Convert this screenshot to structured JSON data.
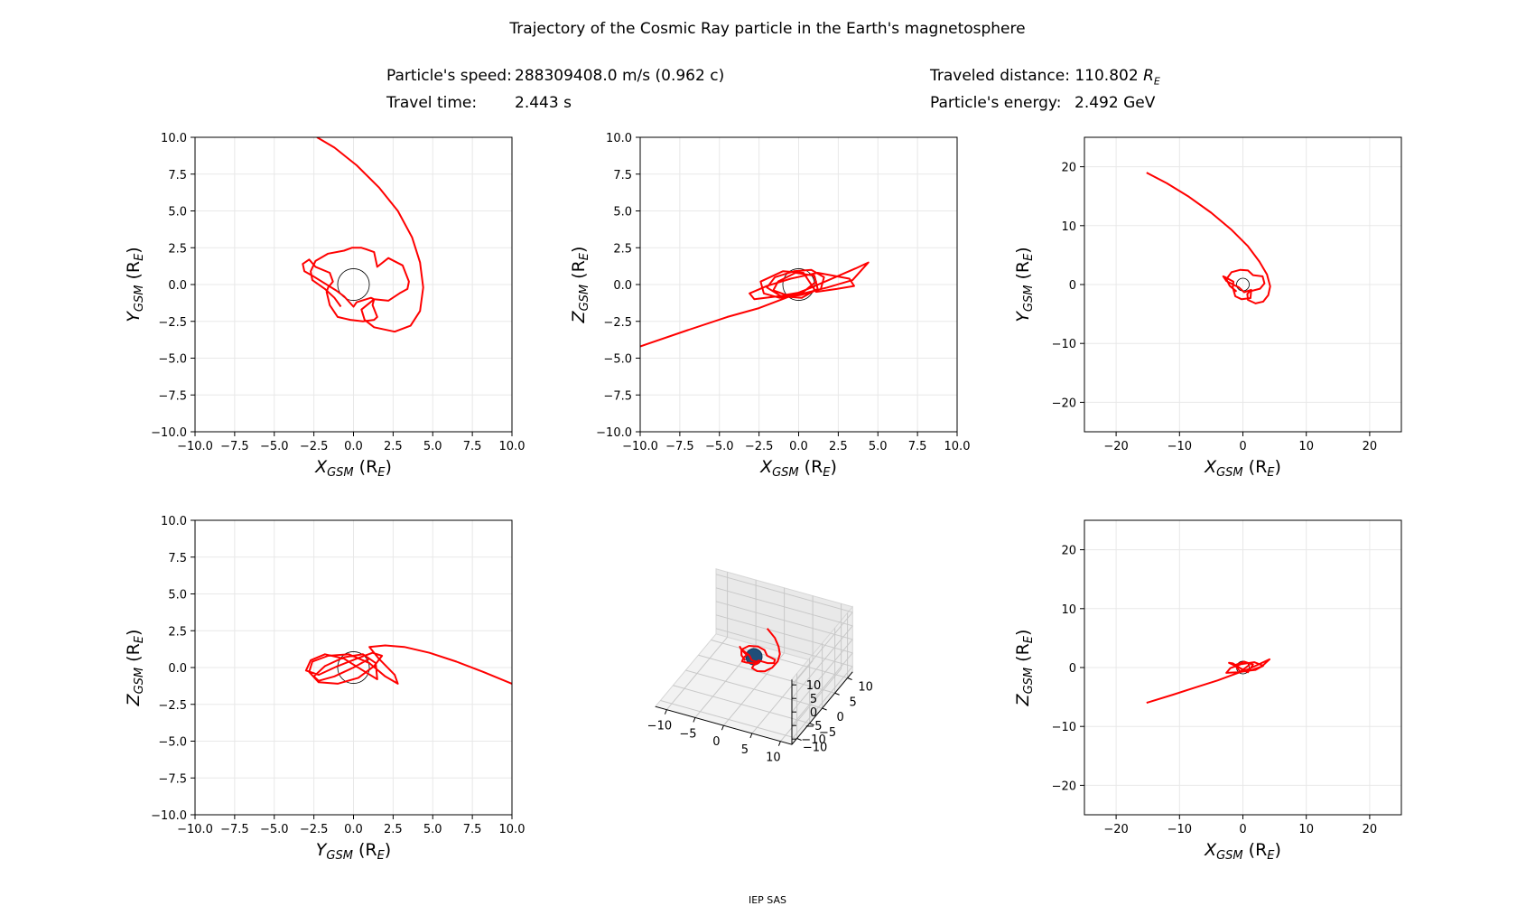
{
  "title": "Trajectory of the Cosmic Ray particle in the Earth's magnetosphere",
  "info": {
    "speed_label": "Particle's speed:",
    "speed_value": "288309408.0 m/s (0.962 c)",
    "time_label": "Travel time:",
    "time_value": "2.443 s",
    "distance_label": "Traveled distance:",
    "distance_value": "110.802",
    "distance_unit": "R",
    "distance_unit_sub": "E",
    "energy_label": "Particle's energy:",
    "energy_value": "2.492 GeV"
  },
  "footer": "IEP SAS",
  "colors": {
    "trajectory": "#ff0000",
    "earth": "#1f4e79",
    "grid": "#e8e8e8"
  },
  "chart_data": [
    {
      "type": "line",
      "panel": "XY-zoom",
      "xlabel": {
        "base": "X",
        "sub": "GSM",
        "unit": " (R",
        "unit_sub": "E",
        "close": ")"
      },
      "ylabel": {
        "base": "Y",
        "sub": "GSM",
        "unit": " (R",
        "unit_sub": "E",
        "close": ")"
      },
      "xlim": [
        -10,
        10
      ],
      "ylim": [
        -10,
        10
      ],
      "xticks": [
        "−10.0",
        "−7.5",
        "−5.0",
        "−2.5",
        "0.0",
        "2.5",
        "5.0",
        "7.5",
        "10.0"
      ],
      "yticks": [
        "−10.0",
        "−7.5",
        "−5.0",
        "−2.5",
        "0.0",
        "2.5",
        "5.0",
        "7.5",
        "10.0"
      ],
      "grid": true,
      "earth_radius": 1,
      "x": [
        -2.3,
        -1.2,
        0.2,
        1.6,
        2.8,
        3.7,
        4.2,
        4.4,
        4.2,
        3.6,
        2.6,
        1.3,
        0.7,
        0.5,
        1.3,
        1.1,
        0.2,
        0.0,
        -0.6,
        -1.1,
        -2.6,
        -3.1,
        -3.2,
        -2.8,
        -2.4,
        -1.5,
        -1.3,
        -1.6,
        -1.7,
        -1.5,
        -1.0,
        -0.2,
        0.6,
        1.3,
        1.5,
        1.2,
        1.3,
        2.2,
        2.9,
        3.4,
        3.5,
        3.1,
        2.2,
        1.5,
        1.3,
        0.8,
        0.5,
        -0.1,
        -0.6,
        -1.6,
        -2.4,
        -2.7,
        -2.6,
        -1.8,
        -1.2,
        -0.8
      ],
      "y": [
        10.0,
        9.3,
        8.1,
        6.6,
        5.0,
        3.2,
        1.5,
        -0.2,
        -1.8,
        -2.8,
        -3.2,
        -2.9,
        -2.4,
        -1.7,
        -1.0,
        -0.9,
        -1.2,
        -1.5,
        -0.8,
        -0.4,
        0.6,
        0.9,
        1.4,
        1.7,
        1.2,
        0.8,
        0.2,
        -0.2,
        -0.5,
        -1.4,
        -2.2,
        -2.4,
        -2.5,
        -2.4,
        -2.2,
        -1.4,
        -1.0,
        -1.1,
        -0.6,
        -0.3,
        0.2,
        1.3,
        1.8,
        1.2,
        2.2,
        2.4,
        2.5,
        2.5,
        2.3,
        2.1,
        1.6,
        0.9,
        0.3,
        -0.3,
        -0.9,
        -1.5
      ]
    },
    {
      "type": "line",
      "panel": "XZ-zoom",
      "xlabel": {
        "base": "X",
        "sub": "GSM",
        "unit": " (R",
        "unit_sub": "E",
        "close": ")"
      },
      "ylabel": {
        "base": "Z",
        "sub": "GSM",
        "unit": " (R",
        "unit_sub": "E",
        "close": ")"
      },
      "xlim": [
        -10,
        10
      ],
      "ylim": [
        -10,
        10
      ],
      "xticks": [
        "−10.0",
        "−7.5",
        "−5.0",
        "−2.5",
        "0.0",
        "2.5",
        "5.0",
        "7.5",
        "10.0"
      ],
      "yticks": [
        "−10.0",
        "−7.5",
        "−5.0",
        "−2.5",
        "0.0",
        "2.5",
        "5.0",
        "7.5",
        "10.0"
      ],
      "grid": true,
      "earth_radius": 1,
      "x": [
        -10.0,
        -7.0,
        -4.5,
        -2.5,
        -0.8,
        0.8,
        2.3,
        3.6,
        4.4,
        3.4,
        1.8,
        0.3,
        -1.3,
        -2.8,
        -3.1,
        -2.0,
        -0.5,
        1.2,
        3.2,
        3.5,
        2.4,
        1.1,
        0.3,
        -1.0,
        -2.4,
        -2.2,
        -1.2,
        0.2,
        1.4,
        1.6,
        0.8,
        -0.3,
        -1.5,
        -2.0,
        -1.1,
        0.2,
        1.2,
        1.0,
        -0.2,
        -1.3,
        -1.6,
        -0.8,
        0.3,
        1.1,
        0.9
      ],
      "y": [
        -4.2,
        -3.1,
        -2.2,
        -1.6,
        -0.9,
        -0.2,
        0.5,
        1.1,
        1.5,
        0.3,
        -0.2,
        -0.6,
        -0.8,
        -1.0,
        -0.6,
        -0.1,
        0.4,
        0.8,
        0.4,
        -0.1,
        -0.3,
        -0.5,
        0.8,
        0.9,
        0.2,
        -0.6,
        -0.9,
        -0.7,
        -0.3,
        0.5,
        1.0,
        0.9,
        0.5,
        -0.2,
        -0.8,
        -0.9,
        -0.3,
        0.6,
        0.8,
        0.2,
        -0.4,
        -0.7,
        -0.5,
        0.2,
        0.7
      ]
    },
    {
      "type": "line",
      "panel": "XY-wide",
      "xlabel": {
        "base": "X",
        "sub": "GSM",
        "unit": " (R",
        "unit_sub": "E",
        "close": ")"
      },
      "ylabel": {
        "base": "Y",
        "sub": "GSM",
        "unit": " (R",
        "unit_sub": "E",
        "close": ")"
      },
      "xlim": [
        -25,
        25
      ],
      "ylim": [
        -25,
        25
      ],
      "xticks": [
        "−20",
        "−10",
        "0",
        "10",
        "20"
      ],
      "yticks": [
        "−20",
        "−10",
        "0",
        "10",
        "20"
      ],
      "grid": true,
      "earth_radius": 1,
      "x": [
        -15.2,
        -12.0,
        -8.5,
        -5.0,
        -1.8,
        0.8,
        2.6,
        3.8,
        4.3,
        4.0,
        3.2,
        2.0,
        0.8,
        0.7,
        1.3,
        0.2,
        -0.6,
        -2.6,
        -3.1,
        -2.7,
        -1.5,
        -1.6,
        -1.2,
        -0.2,
        1.2,
        1.3,
        2.7,
        3.4,
        3.1,
        1.6,
        0.8,
        -0.4,
        -1.8,
        -2.6,
        -2.1,
        -1.0
      ],
      "y": [
        19.0,
        17.2,
        14.9,
        12.2,
        9.3,
        6.5,
        3.9,
        1.7,
        -0.3,
        -1.8,
        -2.9,
        -3.2,
        -2.6,
        -1.6,
        -0.9,
        -1.3,
        -0.5,
        0.6,
        1.4,
        1.2,
        0.5,
        -0.5,
        -2.0,
        -2.5,
        -2.3,
        -1.1,
        -0.7,
        0.2,
        1.4,
        1.6,
        2.4,
        2.5,
        2.1,
        0.9,
        -0.2,
        -1.2
      ]
    },
    {
      "type": "line",
      "panel": "YZ-zoom",
      "xlabel": {
        "base": "Y",
        "sub": "GSM",
        "unit": " (R",
        "unit_sub": "E",
        "close": ")"
      },
      "ylabel": {
        "base": "Z",
        "sub": "GSM",
        "unit": " (R",
        "unit_sub": "E",
        "close": ")"
      },
      "xlim": [
        -10,
        10
      ],
      "ylim": [
        -10,
        10
      ],
      "xticks": [
        "−10.0",
        "−7.5",
        "−5.0",
        "−2.5",
        "0.0",
        "2.5",
        "5.0",
        "7.5",
        "10.0"
      ],
      "yticks": [
        "−10.0",
        "−7.5",
        "−5.0",
        "−2.5",
        "0.0",
        "2.5",
        "5.0",
        "7.5",
        "10.0"
      ],
      "grid": true,
      "earth_radius": 1,
      "x": [
        10.0,
        8.2,
        6.5,
        4.8,
        3.2,
        2.0,
        1.0,
        1.6,
        2.6,
        2.8,
        2.0,
        1.0,
        -0.3,
        -1.6,
        -2.6,
        -2.8,
        -2.2,
        -1.0,
        0.3,
        1.3,
        1.8,
        1.2,
        0.2,
        -1.0,
        -2.2,
        -3.0,
        -2.7,
        -1.8,
        -0.6,
        0.6,
        1.5,
        1.4,
        0.6,
        -0.6,
        -1.8,
        -2.5,
        -2.2,
        -1.2,
        0.0,
        1.0
      ],
      "y": [
        -1.1,
        -0.3,
        0.4,
        1.0,
        1.4,
        1.5,
        1.4,
        0.6,
        -0.5,
        -1.1,
        -0.6,
        0.3,
        0.9,
        0.8,
        0.4,
        -0.3,
        -1.0,
        -1.1,
        -0.7,
        0.1,
        0.8,
        1.0,
        0.6,
        0.1,
        -0.5,
        -0.2,
        0.5,
        0.9,
        0.6,
        -0.2,
        -0.8,
        0.3,
        0.9,
        0.7,
        0.1,
        -0.6,
        -0.9,
        -0.6,
        0.0,
        0.6
      ]
    },
    {
      "type": "line3d",
      "panel": "3D",
      "xticks": [
        "−10",
        "−5",
        "0",
        "5",
        "10"
      ],
      "yticks": [
        "−10",
        "−5",
        "0",
        "5",
        "10"
      ],
      "zticks": [
        "−10",
        "−5",
        "0",
        "5",
        "10"
      ],
      "xlim": [
        -12,
        12
      ],
      "ylim": [
        -12,
        12
      ],
      "zlim": [
        -12,
        12
      ],
      "earth_radius": 1,
      "x": [
        -15.2,
        -12.0,
        -8.5,
        -5.0,
        -1.8,
        0.8,
        2.6,
        3.8,
        4.3,
        4.0,
        3.2,
        2.0,
        0.8,
        0.7,
        1.3,
        0.2,
        -0.6,
        -2.6,
        -3.1,
        -2.7,
        -1.5,
        -1.6,
        -1.2,
        -0.2,
        1.2,
        1.3,
        2.7,
        3.4,
        3.1,
        1.6,
        0.8,
        -0.4,
        -1.8,
        -2.6,
        -2.1,
        -1.0
      ],
      "y": [
        19.0,
        17.2,
        14.9,
        12.2,
        9.3,
        6.5,
        3.9,
        1.7,
        -0.3,
        -1.8,
        -2.9,
        -3.2,
        -2.6,
        -1.6,
        -0.9,
        -1.3,
        -0.5,
        0.6,
        1.4,
        1.2,
        0.5,
        -0.5,
        -2.0,
        -2.5,
        -2.3,
        -1.1,
        -0.7,
        0.2,
        1.4,
        1.6,
        2.4,
        2.5,
        2.1,
        0.9,
        -0.2,
        -1.2
      ],
      "z": [
        -6.0,
        -4.8,
        -3.5,
        -2.2,
        -1.0,
        0.1,
        0.9,
        1.3,
        1.1,
        0.3,
        -0.3,
        -0.6,
        -0.8,
        -0.9,
        -0.4,
        0.2,
        0.7,
        0.8,
        0.3,
        -0.4,
        -0.8,
        -0.7,
        -0.2,
        0.5,
        0.8,
        0.6,
        0.0,
        -0.6,
        -0.9,
        -0.5,
        0.2,
        0.7,
        0.6,
        0.1,
        -0.5,
        -0.6
      ]
    },
    {
      "type": "line",
      "panel": "XZ-wide",
      "xlabel": {
        "base": "X",
        "sub": "GSM",
        "unit": " (R",
        "unit_sub": "E",
        "close": ")"
      },
      "ylabel": {
        "base": "Z",
        "sub": "GSM",
        "unit": " (R",
        "unit_sub": "E",
        "close": ")"
      },
      "xlim": [
        -25,
        25
      ],
      "ylim": [
        -25,
        25
      ],
      "xticks": [
        "−20",
        "−10",
        "0",
        "10",
        "20"
      ],
      "yticks": [
        "−20",
        "−10",
        "0",
        "10",
        "20"
      ],
      "grid": true,
      "earth_radius": 1,
      "x": [
        -15.2,
        -11.0,
        -7.0,
        -4.0,
        -1.5,
        0.8,
        2.6,
        4.2,
        3.0,
        1.2,
        -0.8,
        -2.6,
        -2.0,
        -0.2,
        1.8,
        3.2,
        2.0,
        0.3,
        -1.6,
        -2.2,
        -0.8,
        0.8,
        1.6,
        0.2,
        -1.3,
        -0.4,
        1.1
      ],
      "y": [
        -6.0,
        -4.6,
        -3.2,
        -2.2,
        -1.2,
        -0.3,
        0.6,
        1.4,
        0.2,
        -0.5,
        -0.8,
        -0.9,
        -0.1,
        0.6,
        0.9,
        0.3,
        -0.4,
        -0.6,
        0.7,
        0.8,
        0.1,
        -0.8,
        0.5,
        1.0,
        0.4,
        -0.7,
        0.5
      ]
    }
  ]
}
